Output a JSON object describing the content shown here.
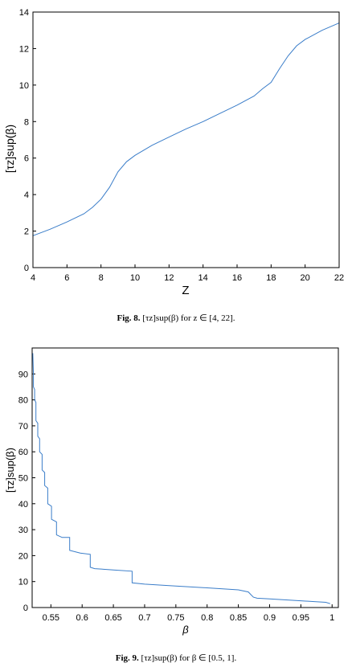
{
  "figures": [
    {
      "caption_label": "Fig. 8.",
      "caption_text": "[τz]sup(β) for z ∈ [4, 22].",
      "chart_data": {
        "type": "line",
        "title": "",
        "xlabel": "Z",
        "ylabel": "[τz]sup(β)",
        "xlim": [
          4,
          22
        ],
        "ylim": [
          0,
          14
        ],
        "xticks": [
          4,
          6,
          8,
          10,
          12,
          14,
          16,
          18,
          20,
          22
        ],
        "yticks": [
          0,
          2,
          4,
          6,
          8,
          10,
          12,
          14
        ],
        "grid": false,
        "series": [
          {
            "color": "#3a7dc9",
            "x": [
              4,
              5,
              6,
              7,
              7.5,
              8,
              8.5,
              9,
              9.5,
              10,
              11,
              12,
              13,
              14,
              15,
              16,
              17,
              17.5,
              18,
              18.5,
              19,
              19.5,
              20,
              21,
              22
            ],
            "y": [
              1.75,
              2.1,
              2.5,
              2.95,
              3.3,
              3.75,
              4.4,
              5.25,
              5.8,
              6.15,
              6.7,
              7.15,
              7.6,
              8.0,
              8.45,
              8.9,
              9.4,
              9.8,
              10.15,
              10.9,
              11.6,
              12.15,
              12.5,
              13.0,
              13.4
            ]
          }
        ]
      }
    },
    {
      "caption_label": "Fig. 9.",
      "caption_text": "[τz]sup(β) for β ∈ [0.5, 1].",
      "chart_data": {
        "type": "line",
        "title": "",
        "xlabel": "β",
        "ylabel": "[τz]sup(β)",
        "xlim": [
          0.52,
          1.01
        ],
        "ylim": [
          0,
          100
        ],
        "xticks": [
          0.55,
          0.6,
          0.65,
          0.7,
          0.75,
          0.8,
          0.85,
          0.9,
          0.95,
          1
        ],
        "xtick_labels": [
          "0.55",
          "0.6",
          "0.65",
          "0.7",
          "0.75",
          "0.8",
          "0.85",
          "0.9",
          "0.95",
          "1"
        ],
        "yticks": [
          0,
          10,
          20,
          30,
          40,
          50,
          60,
          70,
          80,
          90
        ],
        "grid": false,
        "series": [
          {
            "color": "#3a7dc9",
            "x": [
              0.521,
              0.522,
              0.522,
              0.524,
              0.524,
              0.526,
              0.526,
              0.529,
              0.529,
              0.532,
              0.532,
              0.536,
              0.536,
              0.54,
              0.54,
              0.545,
              0.545,
              0.551,
              0.551,
              0.559,
              0.559,
              0.568,
              0.568,
              0.58,
              0.58,
              0.597,
              0.597,
              0.613,
              0.613,
              0.62,
              0.65,
              0.68,
              0.68,
              0.7,
              0.75,
              0.8,
              0.85,
              0.866,
              0.87,
              0.874,
              0.88,
              0.9,
              0.95,
              0.99,
              0.997
            ],
            "y": [
              98,
              90,
              85,
              84,
              80,
              79,
              72,
              71,
              66,
              65,
              60,
              59,
              53,
              52,
              47,
              46,
              40,
              39,
              34,
              33,
              28,
              27,
              27,
              27,
              22,
              21,
              21,
              20.5,
              15.5,
              15,
              14.5,
              14,
              9.5,
              9,
              8.3,
              7.6,
              6.8,
              6.0,
              5.0,
              4.0,
              3.6,
              3.3,
              2.6,
              2.0,
              1.5
            ]
          }
        ]
      }
    }
  ]
}
